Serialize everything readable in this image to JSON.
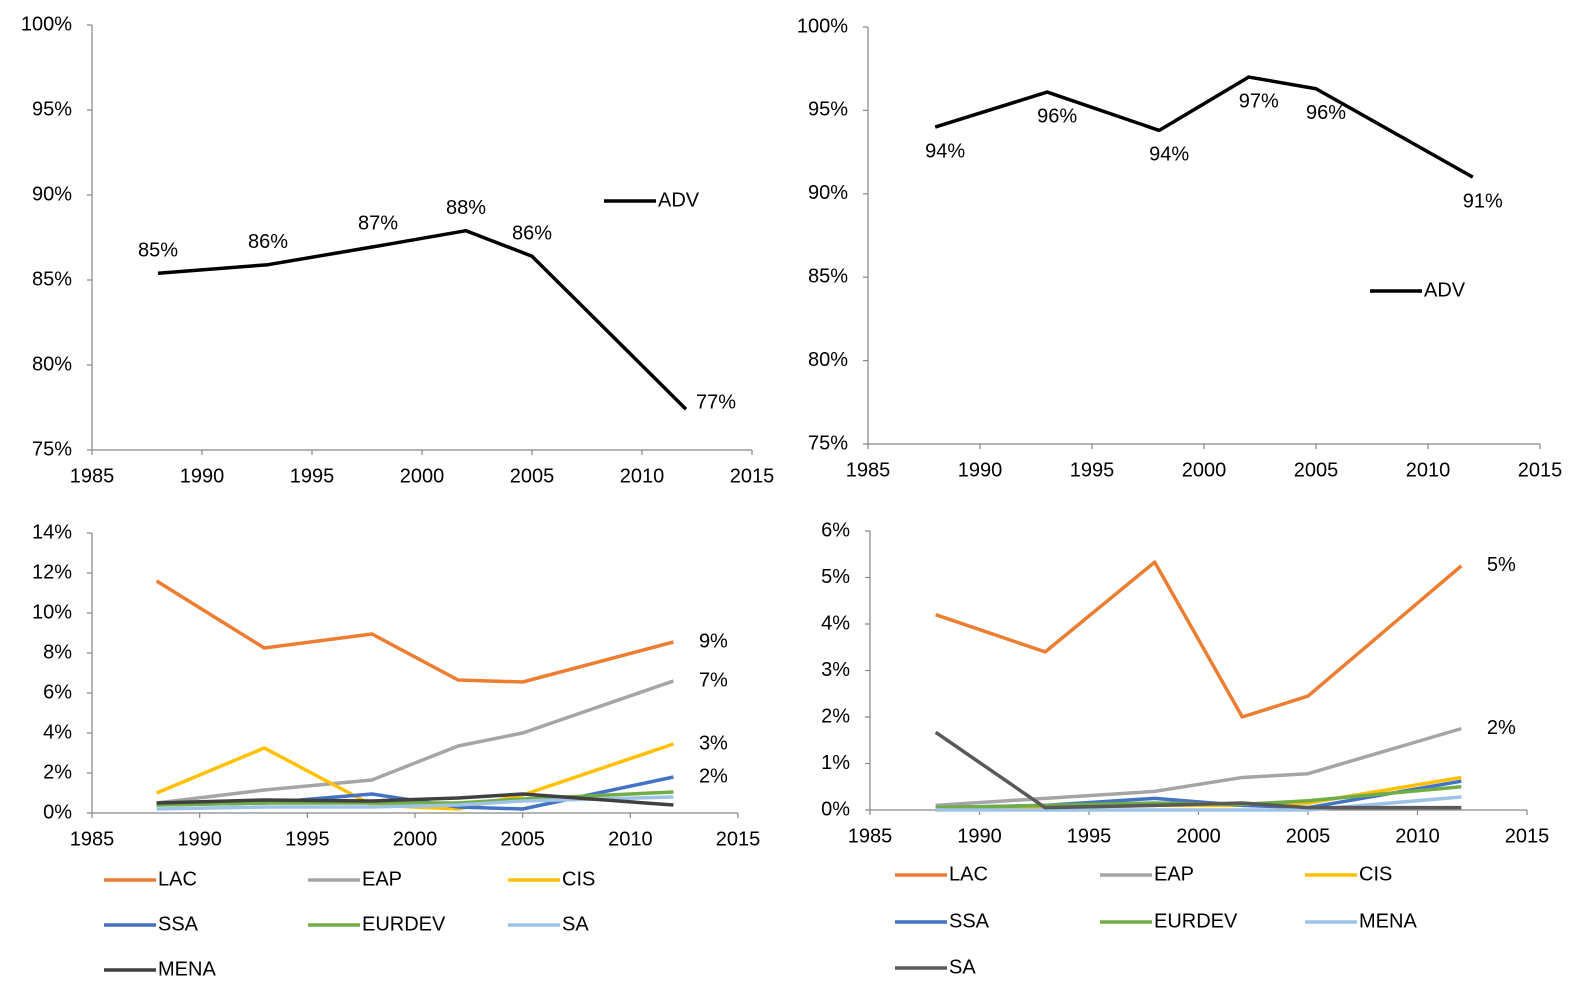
{
  "chart_data": [
    {
      "type": "line",
      "x": [
        1988,
        1993,
        1998,
        2002,
        2005,
        2012
      ],
      "series": [
        {
          "name": "ADV",
          "color": "#000000",
          "values": [
            85.4,
            85.9,
            87.0,
            87.9,
            86.4,
            77.4
          ],
          "value_labels": [
            "85%",
            "86%",
            "87%",
            "88%",
            "86%",
            "77%"
          ]
        }
      ],
      "xlim": [
        1985,
        2015
      ],
      "xticks": [
        1985,
        1990,
        1995,
        2000,
        2005,
        2010,
        2015
      ],
      "ylim": [
        75,
        100
      ],
      "yticks": [
        {
          "value": 75,
          "label": "75%"
        },
        {
          "value": 80,
          "label": "80%"
        },
        {
          "value": 85,
          "label": "85%"
        },
        {
          "value": 90,
          "label": "90%"
        },
        {
          "value": 95,
          "label": "95%"
        },
        {
          "value": 100,
          "label": "100%"
        }
      ],
      "legend": "right"
    },
    {
      "type": "line",
      "x": [
        1988,
        1993,
        1998,
        2002,
        2005,
        2012
      ],
      "series": [
        {
          "name": "ADV",
          "color": "#000000",
          "values": [
            94.0,
            96.1,
            93.8,
            97.0,
            96.3,
            91.0
          ],
          "value_labels": [
            "94%",
            "96%",
            "94%",
            "97%",
            "96%",
            "91%"
          ]
        }
      ],
      "xlim": [
        1985,
        2015
      ],
      "xticks": [
        1985,
        1990,
        1995,
        2000,
        2005,
        2010,
        2015
      ],
      "ylim": [
        75,
        100
      ],
      "yticks": [
        {
          "value": 75,
          "label": "75%"
        },
        {
          "value": 80,
          "label": "80%"
        },
        {
          "value": 85,
          "label": "85%"
        },
        {
          "value": 90,
          "label": "90%"
        },
        {
          "value": 95,
          "label": "95%"
        },
        {
          "value": 100,
          "label": "100%"
        }
      ],
      "legend": "right"
    },
    {
      "type": "line",
      "x": [
        1988,
        1993,
        1998,
        2002,
        2005,
        2012
      ],
      "series": [
        {
          "name": "LAC",
          "color": "#ED7D31",
          "values": [
            11.6,
            8.25,
            8.95,
            6.65,
            6.55,
            8.55
          ],
          "value_labels": [
            null,
            null,
            null,
            null,
            null,
            "9%"
          ]
        },
        {
          "name": "EAP",
          "color": "#A5A5A5",
          "values": [
            0.5,
            1.15,
            1.65,
            3.35,
            4.0,
            6.6
          ],
          "value_labels": [
            null,
            null,
            null,
            null,
            null,
            "7%"
          ]
        },
        {
          "name": "CIS",
          "color": "#FFC000",
          "values": [
            1.0,
            3.25,
            0.4,
            0.2,
            0.9,
            3.45
          ],
          "value_labels": [
            null,
            null,
            null,
            null,
            null,
            "3%"
          ]
        },
        {
          "name": "SSA",
          "color": "#4472C4",
          "values": [
            0.4,
            0.5,
            0.95,
            0.3,
            0.2,
            1.8
          ],
          "value_labels": [
            null,
            null,
            null,
            null,
            null,
            "2%"
          ]
        },
        {
          "name": "EURDEV",
          "color": "#70AD47",
          "values": [
            0.4,
            0.5,
            0.5,
            0.5,
            0.7,
            1.05
          ]
        },
        {
          "name": "SA",
          "color": "#9DC3E6",
          "values": [
            0.2,
            0.3,
            0.3,
            0.4,
            0.6,
            0.8
          ]
        },
        {
          "name": "MENA",
          "color": "#404040",
          "values": [
            0.5,
            0.65,
            0.6,
            0.75,
            0.95,
            0.4
          ]
        }
      ],
      "xlim": [
        1985,
        2015
      ],
      "xticks": [
        1985,
        1990,
        1995,
        2000,
        2005,
        2010,
        2015
      ],
      "ylim": [
        0,
        14
      ],
      "yticks": [
        {
          "value": 0,
          "label": "0%"
        },
        {
          "value": 2,
          "label": "2%"
        },
        {
          "value": 4,
          "label": "4%"
        },
        {
          "value": 6,
          "label": "6%"
        },
        {
          "value": 8,
          "label": "8%"
        },
        {
          "value": 10,
          "label": "10%"
        },
        {
          "value": 12,
          "label": "12%"
        },
        {
          "value": 14,
          "label": "14%"
        }
      ],
      "legend": "bottom"
    },
    {
      "type": "line",
      "x": [
        1988,
        1993,
        1998,
        2002,
        2005,
        2012
      ],
      "series": [
        {
          "name": "LAC",
          "color": "#ED7D31",
          "values": [
            4.2,
            3.4,
            5.33,
            2.0,
            2.45,
            5.25
          ],
          "value_labels": [
            null,
            null,
            null,
            null,
            null,
            "5%"
          ]
        },
        {
          "name": "EAP",
          "color": "#A5A5A5",
          "values": [
            0.1,
            0.25,
            0.4,
            0.7,
            0.78,
            1.75
          ],
          "value_labels": [
            null,
            null,
            null,
            null,
            null,
            "2%"
          ]
        },
        {
          "name": "CIS",
          "color": "#FFC000",
          "values": [
            0.0,
            0.05,
            0.1,
            0.1,
            0.15,
            0.7
          ]
        },
        {
          "name": "SSA",
          "color": "#4472C4",
          "values": [
            0.05,
            0.1,
            0.25,
            0.1,
            0.05,
            0.62
          ]
        },
        {
          "name": "EURDEV",
          "color": "#70AD47",
          "values": [
            0.05,
            0.1,
            0.15,
            0.12,
            0.2,
            0.5
          ]
        },
        {
          "name": "MENA",
          "color": "#9DC3E6",
          "values": [
            0.0,
            0.0,
            0.0,
            0.0,
            0.0,
            0.28
          ]
        },
        {
          "name": "SA",
          "color": "#595959",
          "values": [
            1.67,
            0.05,
            0.1,
            0.15,
            0.05,
            0.05
          ]
        }
      ],
      "xlim": [
        1985,
        2015
      ],
      "xticks": [
        1985,
        1990,
        1995,
        2000,
        2005,
        2010,
        2015
      ],
      "ylim": [
        0,
        6
      ],
      "yticks": [
        {
          "value": 0,
          "label": "0%"
        },
        {
          "value": 1,
          "label": "1%"
        },
        {
          "value": 2,
          "label": "2%"
        },
        {
          "value": 3,
          "label": "3%"
        },
        {
          "value": 4,
          "label": "4%"
        },
        {
          "value": 5,
          "label": "5%"
        },
        {
          "value": 6,
          "label": "6%"
        }
      ],
      "legend": "bottom"
    }
  ]
}
